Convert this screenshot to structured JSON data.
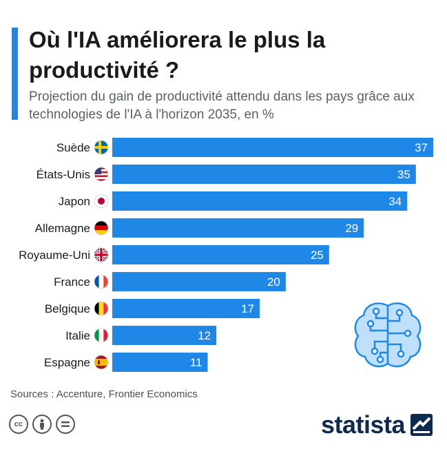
{
  "header": {
    "title": "Où l'IA améliorera le plus la productivité ?",
    "subtitle": "Projection du gain de productivité attendu dans les pays grâce aux technologies de l'IA à l'horizon 2035, en %"
  },
  "chart_data": {
    "type": "bar",
    "orientation": "horizontal",
    "categories": [
      "Suède",
      "États-Unis",
      "Japon",
      "Allemagne",
      "Royaume-Uni",
      "France",
      "Belgique",
      "Italie",
      "Espagne"
    ],
    "values": [
      37,
      35,
      34,
      29,
      25,
      20,
      17,
      12,
      11
    ],
    "flag_icons": [
      "sweden-flag-icon",
      "usa-flag-icon",
      "japan-flag-icon",
      "germany-flag-icon",
      "uk-flag-icon",
      "france-flag-icon",
      "belgium-flag-icon",
      "italy-flag-icon",
      "spain-flag-icon"
    ],
    "xlim": [
      0,
      37
    ],
    "bar_color": "#1f87e6",
    "grid": false
  },
  "footer": {
    "source": "Sources : Accenture, Frontier Economics",
    "license_icons": [
      "cc-icon",
      "by-icon",
      "nd-icon"
    ],
    "brand": "statista"
  },
  "colors": {
    "accent": "#1f87e6",
    "brand": "#0f2a4f"
  }
}
